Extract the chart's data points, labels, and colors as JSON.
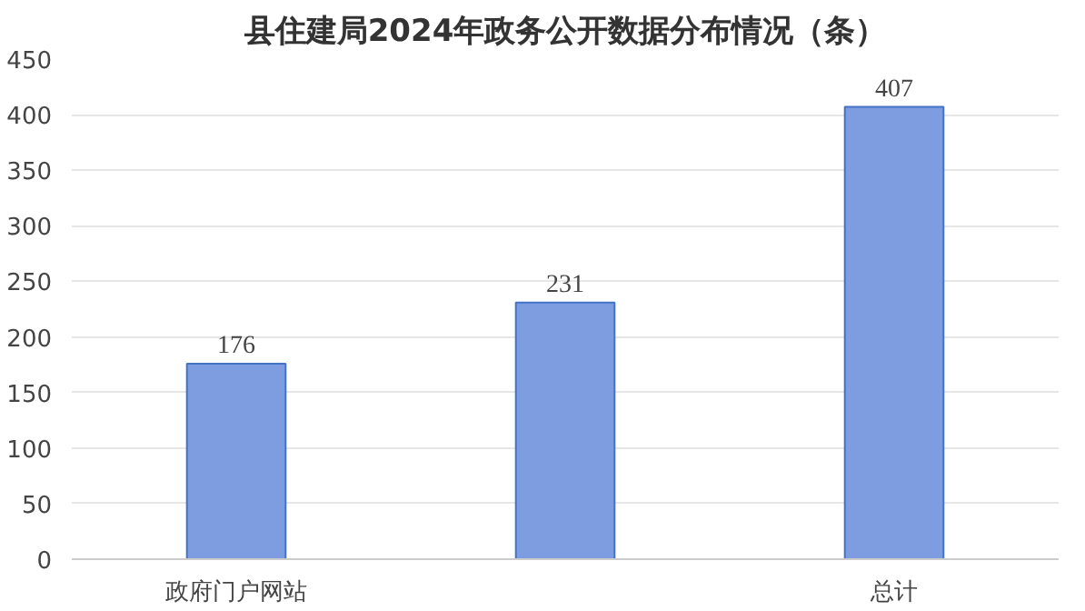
{
  "chart_data": {
    "type": "bar",
    "title": "县住建局2024年政务公开数据分布情况（条）",
    "categories": [
      "政府门户网站",
      null,
      "总计"
    ],
    "values": [
      176,
      231,
      407
    ],
    "color": "#7e9de0",
    "ylim": [
      0,
      450
    ],
    "yticks": [
      0,
      50,
      100,
      150,
      200,
      250,
      300,
      350,
      400,
      450
    ],
    "grid": "y",
    "data_labels": true
  }
}
